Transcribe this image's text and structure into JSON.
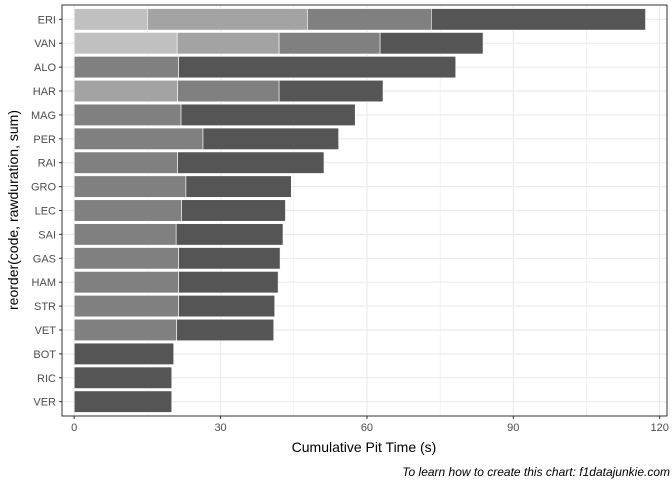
{
  "chart_data": {
    "type": "bar",
    "orientation": "horizontal",
    "stacked": true,
    "xlabel": "Cumulative Pit Time (s)",
    "ylabel": "reorder(code, rawduration, sum)",
    "caption": "To learn how to create this chart: f1datajunkie.com",
    "xlim": [
      -2.5,
      121.5
    ],
    "xticks": [
      0,
      30,
      60,
      90,
      120
    ],
    "grid": true,
    "legend": "none",
    "stack_colors": [
      "#808080",
      "#555555",
      "#a3a3a3",
      "#c0c0c0"
    ],
    "categories": [
      "ERI",
      "VAN",
      "ALO",
      "HAR",
      "MAG",
      "PER",
      "RAI",
      "GRO",
      "LEC",
      "SAI",
      "GAS",
      "HAM",
      "STR",
      "VET",
      "BOT",
      "RIC",
      "VER"
    ],
    "stops": [
      [
        15.0,
        32.8,
        25.4,
        43.9
      ],
      [
        21.1,
        20.9,
        20.7,
        21.1
      ],
      [
        21.4,
        56.8
      ],
      [
        21.2,
        20.8,
        21.3
      ],
      [
        21.9,
        35.7
      ],
      [
        26.4,
        27.8
      ],
      [
        21.2,
        30.0
      ],
      [
        22.9,
        21.6
      ],
      [
        22.0,
        21.3
      ],
      [
        20.9,
        21.9
      ],
      [
        21.4,
        20.8
      ],
      [
        21.4,
        20.4
      ],
      [
        21.4,
        19.7
      ],
      [
        21.0,
        19.9
      ],
      [
        20.4
      ],
      [
        20.0
      ],
      [
        20.0
      ]
    ],
    "stop_colors": [
      [
        "#c0c0c0",
        "#a3a3a3",
        "#808080",
        "#555555"
      ],
      [
        "#c0c0c0",
        "#a3a3a3",
        "#808080",
        "#555555"
      ],
      [
        "#808080",
        "#555555"
      ],
      [
        "#a3a3a3",
        "#808080",
        "#555555"
      ],
      [
        "#808080",
        "#555555"
      ],
      [
        "#808080",
        "#555555"
      ],
      [
        "#808080",
        "#555555"
      ],
      [
        "#808080",
        "#555555"
      ],
      [
        "#808080",
        "#555555"
      ],
      [
        "#808080",
        "#555555"
      ],
      [
        "#808080",
        "#555555"
      ],
      [
        "#808080",
        "#555555"
      ],
      [
        "#808080",
        "#555555"
      ],
      [
        "#808080",
        "#555555"
      ],
      [
        "#555555"
      ],
      [
        "#555555"
      ],
      [
        "#555555"
      ]
    ]
  }
}
